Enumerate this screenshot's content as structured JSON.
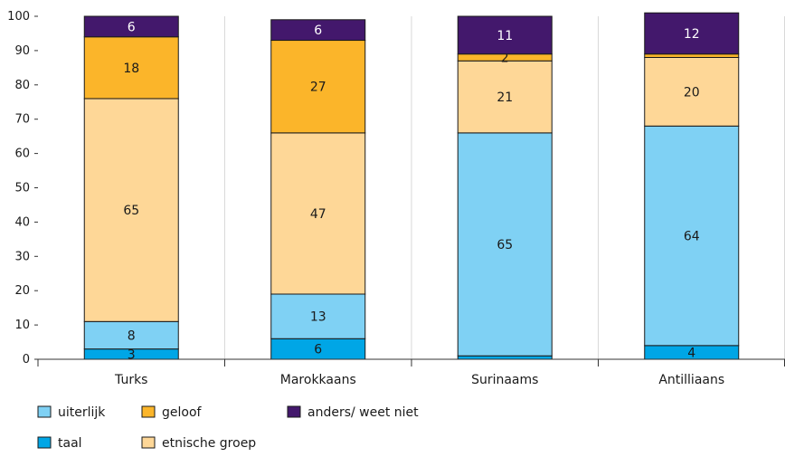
{
  "chart_data": {
    "type": "bar",
    "stacked": true,
    "title": "",
    "xlabel": "",
    "ylabel": "",
    "ylim": [
      0,
      100
    ],
    "yticks": [
      0,
      10,
      20,
      30,
      40,
      50,
      60,
      70,
      80,
      90,
      100
    ],
    "grid": "vertical",
    "legend_position": "bottom-left",
    "categories": [
      "Turks",
      "Marokkaans",
      "Surinaams",
      "Antilliaans"
    ],
    "series": [
      {
        "name": "taal",
        "color": "#00a6e6",
        "values": [
          3,
          6,
          1,
          4
        ],
        "labels": [
          "3",
          "6",
          "",
          "4"
        ]
      },
      {
        "name": "uiterlijk",
        "color": "#7fd1f4",
        "values": [
          8,
          13,
          65,
          64
        ],
        "labels": [
          "8",
          "13",
          "65",
          "64"
        ]
      },
      {
        "name": "etnische groep",
        "color": "#fed797",
        "values": [
          65,
          47,
          21,
          20
        ],
        "labels": [
          "65",
          "47",
          "21",
          "20"
        ]
      },
      {
        "name": "geloof",
        "color": "#fbb52a",
        "values": [
          18,
          27,
          2,
          1
        ],
        "labels": [
          "18",
          "27",
          "2",
          ""
        ]
      },
      {
        "name": "anders/ weet niet",
        "color": "#43186c",
        "values": [
          6,
          6,
          11,
          12
        ],
        "labels": [
          "6",
          "6",
          "11",
          "12"
        ]
      }
    ],
    "legend_order": [
      "uiterlijk",
      "geloof",
      "anders/ weet niet",
      "taal",
      "etnische groep"
    ]
  }
}
